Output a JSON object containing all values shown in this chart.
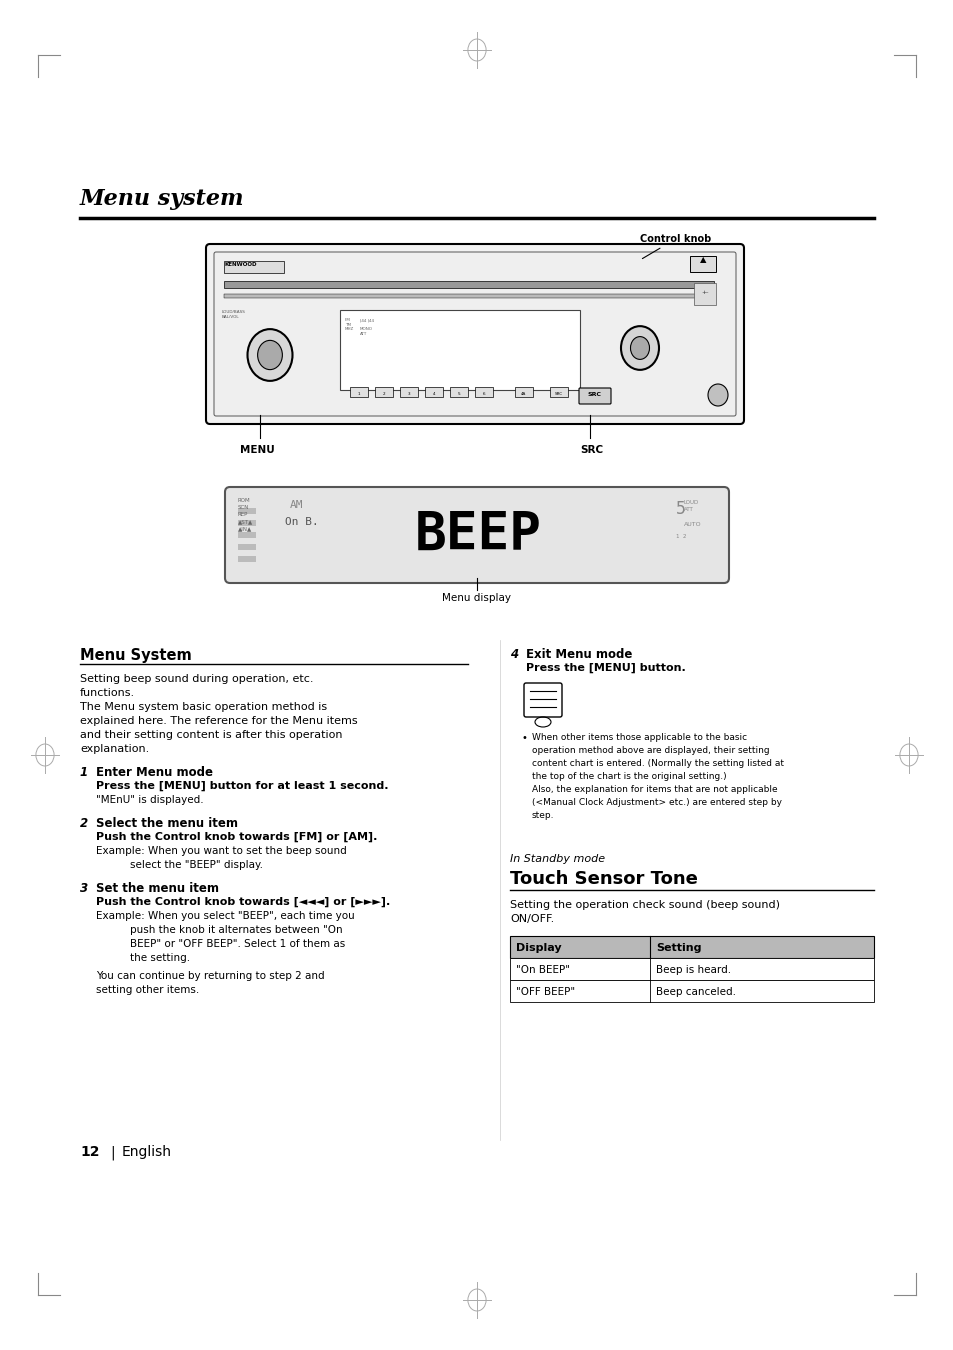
{
  "page_bg": "#ffffff",
  "title": "Menu system",
  "section_left_title": "Menu System",
  "section_right_italic_title": "In Standby mode",
  "section_right_title": "Touch Sensor Tone",
  "table_header": [
    "Display",
    "Setting"
  ],
  "table_rows": [
    [
      "\"On BEEP\"",
      "Beep is heard."
    ],
    [
      "\"OFF BEEP\"",
      "Beep canceled."
    ]
  ],
  "label_control_knob": "Control knob",
  "label_menu": "MENU",
  "label_src": "SRC",
  "label_menu_display": "Menu display",
  "page_num": "12",
  "page_lang": "English",
  "left_col_body": [
    "Setting beep sound during operation, etc.",
    "functions.",
    "The Menu system basic operation method is",
    "explained here. The reference for the Menu items",
    "and their setting content is after this operation",
    "explanation."
  ],
  "step1_title": "Enter Menu mode",
  "step1_bold": "Press the [MENU] button for at least 1 second.",
  "step1_body": "\"MEnU\" is displayed.",
  "step2_title": "Select the menu item",
  "step2_bold": "Push the Control knob towards [FM] or [AM].",
  "step2_body1": "Example: When you want to set the beep sound",
  "step2_body2": "select the \"BEEP\" display.",
  "step3_title": "Set the menu item",
  "step3_bold": "Push the Control knob towards [◄◄◄] or [►►►].",
  "step3_body1": "Example: When you select \"BEEP\", each time you",
  "step3_body2": "push the knob it alternates between \"On",
  "step3_body3": "BEEP\" or \"OFF BEEP\". Select 1 of them as",
  "step3_body4": "the setting.",
  "step3_body5": "You can continue by returning to step 2 and",
  "step3_body6": "setting other items.",
  "step4_title": "Exit Menu mode",
  "step4_bold": "Press the [MENU] button.",
  "right_note1": "When other items those applicable to the basic",
  "right_note2": "operation method above are displayed, their setting",
  "right_note3": "content chart is entered. (Normally the setting listed at",
  "right_note4": "the top of the chart is the original setting.)",
  "right_note5": "Also, the explanation for items that are not applicable",
  "right_note6": "(<Manual Clock Adjustment> etc.) are entered step by",
  "right_note7": "step.",
  "setting_desc1": "Setting the operation check sound (beep sound)",
  "setting_desc2": "ON/OFF."
}
